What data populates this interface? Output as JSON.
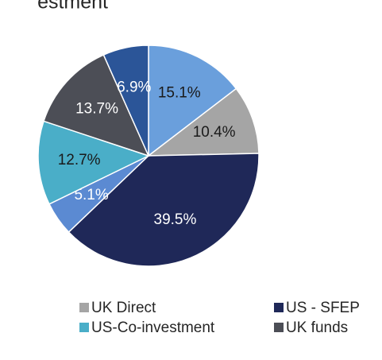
{
  "chart_data": {
    "type": "pie",
    "title": "estment",
    "categories": [
      null,
      "UK Direct",
      "US - SFEP",
      null,
      "US-Co-investment",
      "UK funds",
      null
    ],
    "values": [
      15.1,
      10.4,
      39.5,
      5.1,
      12.7,
      13.7,
      6.9
    ],
    "value_labels": [
      "15.1%",
      "10.4%",
      "39.5%",
      "5.1%",
      "12.7%",
      "13.7%",
      "6.9%"
    ],
    "colors": [
      "#6a9fdc",
      "#a5a5a5",
      "#1f2858",
      "#5b8ad2",
      "#4aaec8",
      "#4c4e56",
      "#2b5598"
    ],
    "legend": "bottom"
  }
}
